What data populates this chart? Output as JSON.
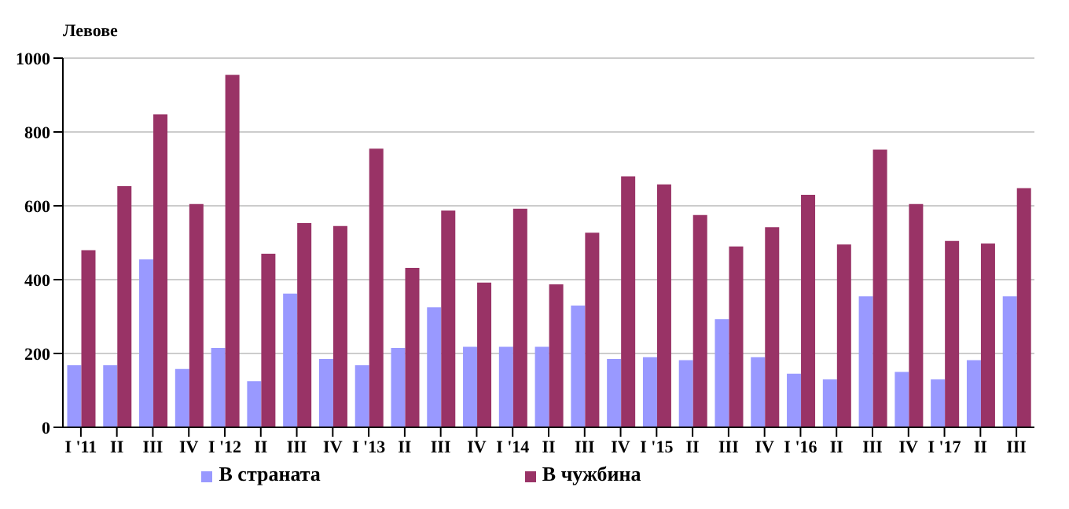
{
  "chart_data": {
    "type": "bar",
    "ylabel": "Левове",
    "categories": [
      "I '11",
      "II",
      "III",
      "IV",
      "I '12",
      "II",
      "III",
      "IV",
      "I '13",
      "II",
      "III",
      "IV",
      "I '14",
      "II",
      "III",
      "IV",
      "I '15",
      "II",
      "III",
      "IV",
      "I '16",
      "II",
      "III",
      "IV",
      "I '17",
      "II",
      "III"
    ],
    "series": [
      {
        "name": "В страната",
        "color": "#9999ff",
        "values": [
          168,
          168,
          455,
          158,
          215,
          125,
          362,
          185,
          168,
          215,
          325,
          218,
          218,
          218,
          330,
          185,
          190,
          182,
          293,
          190,
          145,
          130,
          355,
          150,
          130,
          182,
          355
        ]
      },
      {
        "name": "В чужбина",
        "color": "#993366",
        "values": [
          480,
          653,
          848,
          605,
          955,
          470,
          553,
          545,
          755,
          432,
          587,
          392,
          592,
          387,
          527,
          680,
          658,
          575,
          490,
          542,
          630,
          495,
          752,
          605,
          505,
          498,
          648
        ]
      }
    ],
    "ylim": [
      0,
      1000
    ],
    "yticks": [
      0,
      200,
      400,
      600,
      800,
      1000
    ],
    "grid": "y",
    "legend": "bottom"
  }
}
